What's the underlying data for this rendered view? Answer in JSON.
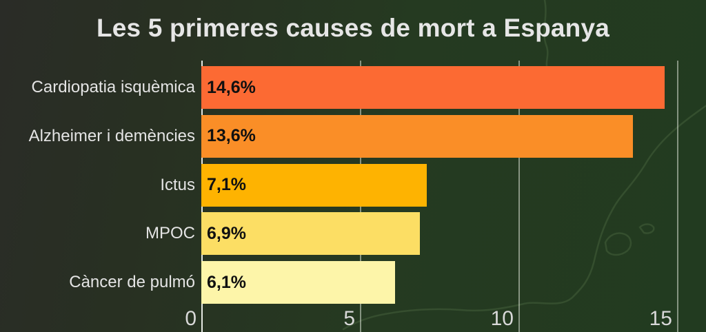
{
  "chart_data": {
    "type": "bar",
    "orientation": "horizontal",
    "title": "Les 5 primeres causes de mort a Espanya",
    "categories": [
      "Cardiopatia isquèmica",
      "Alzheimer i demències",
      "Ictus",
      "MPOC",
      "Càncer de pulmó"
    ],
    "values": [
      14.6,
      13.6,
      7.1,
      6.9,
      6.1
    ],
    "value_labels": [
      "14,6%",
      "13,6%",
      "7,1%",
      "6,9%",
      "6,1%"
    ],
    "bar_colors": [
      "#fc6a33",
      "#fa8e27",
      "#feb301",
      "#fcde64",
      "#fdf5a9"
    ],
    "x_ticks": [
      0,
      5,
      10,
      15
    ],
    "x_tick_labels": [
      "0",
      "5",
      "10",
      "15"
    ],
    "xlim": [
      0,
      15.9
    ],
    "xlabel": "",
    "ylabel": "",
    "grid": true,
    "legend": false,
    "colors": {
      "background_left": "#2a2c27",
      "background_right": "#223b20",
      "gridline": "#d8e0d4",
      "axis_line": "#f5f7f3",
      "title_text": "#e6e6e6",
      "category_text": "#e4e4e4",
      "value_text": "#101010",
      "tick_text": "#d8d8d8",
      "map_outline": "#6f9460"
    }
  }
}
